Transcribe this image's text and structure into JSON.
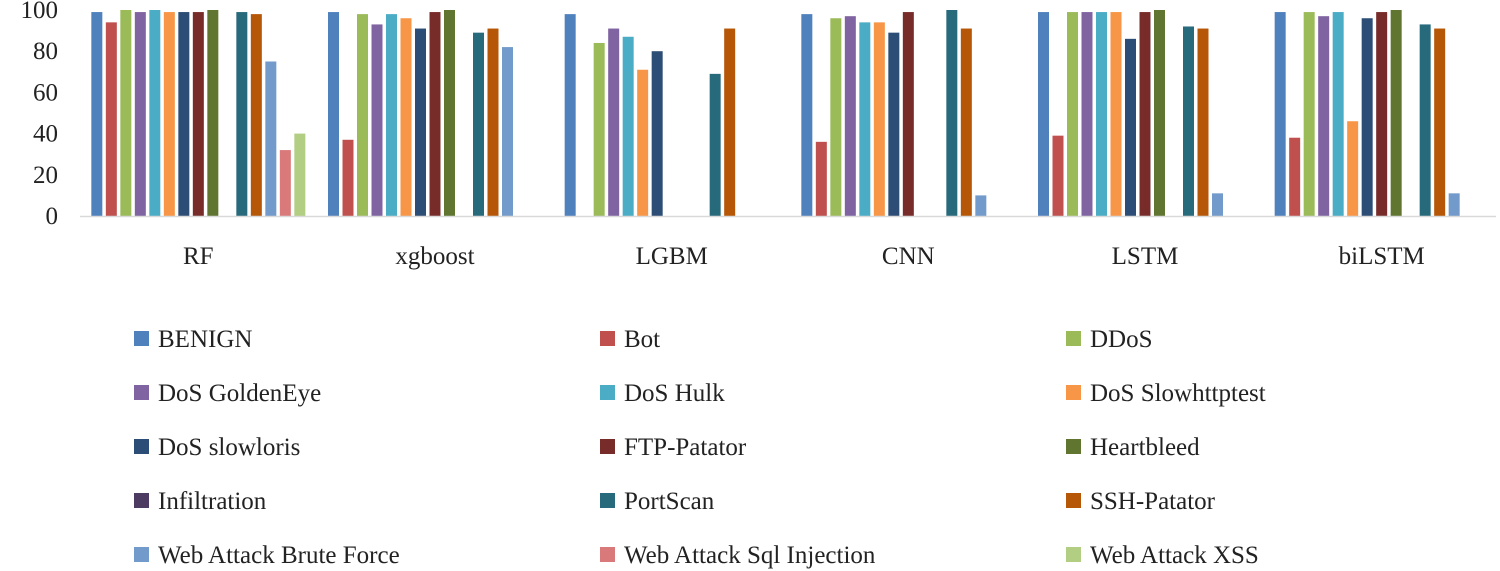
{
  "chart_data": {
    "type": "bar",
    "title": "",
    "xlabel": "",
    "ylabel": "",
    "ylim": [
      0,
      100
    ],
    "yticks": [
      0,
      20,
      40,
      60,
      80,
      100
    ],
    "grid": false,
    "legend_position": "bottom",
    "categories": [
      "RF",
      "xgboost",
      "LGBM",
      "CNN",
      "LSTM",
      "biLSTM"
    ],
    "series": [
      {
        "name": "BENIGN",
        "color": "#4F81BD",
        "values": [
          99,
          99,
          98,
          98,
          99,
          99
        ]
      },
      {
        "name": "Bot",
        "color": "#C0504D",
        "values": [
          94,
          37,
          0,
          36,
          39,
          38
        ]
      },
      {
        "name": "DDoS",
        "color": "#9BBB59",
        "values": [
          100,
          98,
          84,
          96,
          99,
          99
        ]
      },
      {
        "name": "DoS GoldenEye",
        "color": "#8064A2",
        "values": [
          99,
          93,
          91,
          97,
          99,
          97
        ]
      },
      {
        "name": "DoS Hulk",
        "color": "#4BACC6",
        "values": [
          100,
          98,
          87,
          94,
          99,
          99
        ]
      },
      {
        "name": "DoS Slowhttptest",
        "color": "#F79646",
        "values": [
          99,
          96,
          71,
          94,
          99,
          46
        ]
      },
      {
        "name": "DoS slowloris",
        "color": "#2C4D75",
        "values": [
          99,
          91,
          80,
          89,
          86,
          96
        ]
      },
      {
        "name": "FTP-Patator",
        "color": "#772C2A",
        "values": [
          99,
          99,
          0,
          99,
          99,
          99
        ]
      },
      {
        "name": "Heartbleed",
        "color": "#5F7530",
        "values": [
          100,
          100,
          0,
          0,
          100,
          100
        ]
      },
      {
        "name": "Infiltration",
        "color": "#4D3B62",
        "values": [
          0,
          0,
          0,
          0,
          0,
          0
        ]
      },
      {
        "name": "PortScan",
        "color": "#276A7C",
        "values": [
          99,
          89,
          69,
          100,
          92,
          93
        ]
      },
      {
        "name": "SSH-Patator",
        "color": "#B65708",
        "values": [
          98,
          91,
          91,
          91,
          91,
          91
        ]
      },
      {
        "name": "Web Attack Brute Force",
        "color": "#729ACA",
        "values": [
          75,
          82,
          0,
          10,
          11,
          11
        ]
      },
      {
        "name": "Web Attack Sql Injection",
        "color": "#D9797A",
        "values": [
          32,
          0,
          0,
          0,
          0,
          0
        ]
      },
      {
        "name": "Web Attack XSS",
        "color": "#B2CE83",
        "values": [
          40,
          0,
          0,
          0,
          0,
          0
        ]
      }
    ]
  }
}
